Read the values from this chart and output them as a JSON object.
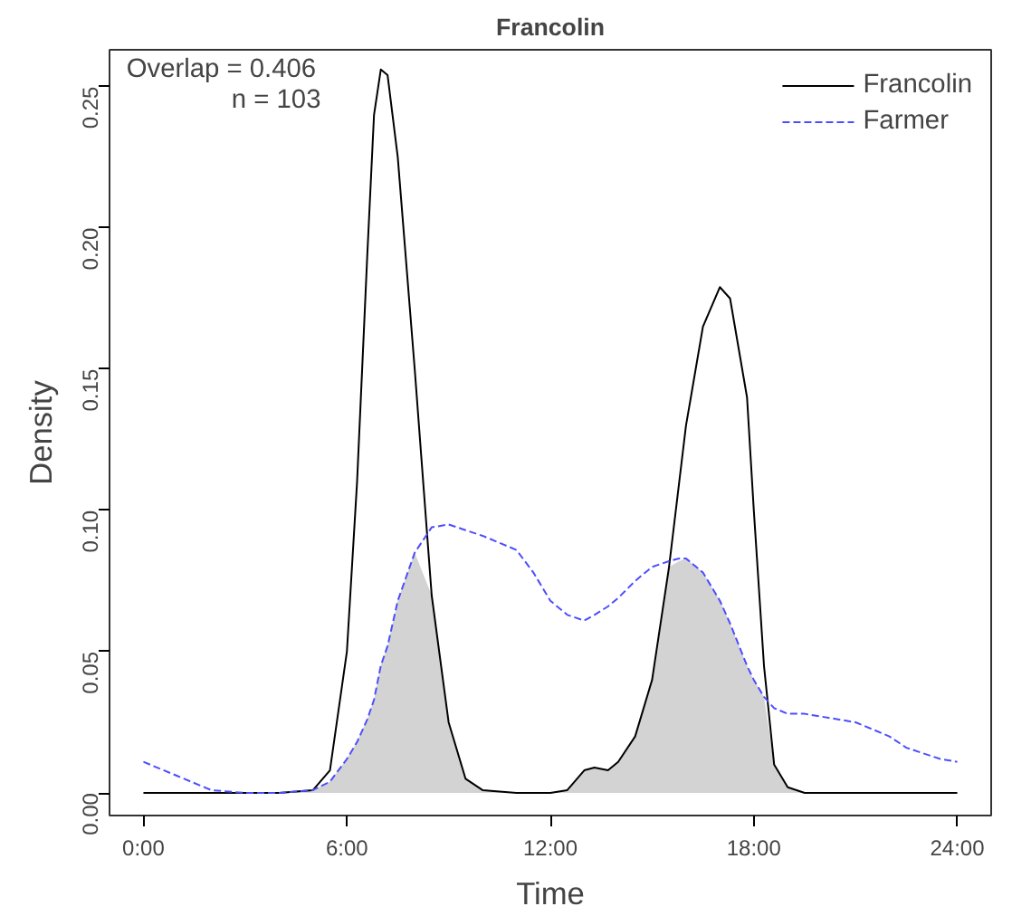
{
  "chart_data": {
    "type": "line",
    "title": "Francolin",
    "xlabel": "Time",
    "ylabel": "Density",
    "x": [
      0,
      1,
      2,
      3,
      4,
      5,
      5.5,
      6,
      6.3,
      6.6,
      6.8,
      7,
      7.2,
      7.5,
      8,
      8.5,
      9,
      9.5,
      10,
      11,
      11.5,
      12,
      12.5,
      13,
      13.3,
      13.7,
      14,
      14.5,
      15,
      15.5,
      15.8,
      16,
      16.5,
      17,
      17.3,
      17.8,
      18,
      18.3,
      18.6,
      19,
      19.5,
      20,
      21,
      22,
      22.5,
      23.5,
      24
    ],
    "series": [
      {
        "type": "area",
        "color": "#d3d3d3",
        "values": [
          0,
          0,
          0,
          0,
          0,
          0.001,
          0.004,
          0.012,
          0.018,
          0.026,
          0.033,
          0.045,
          0.052,
          0.068,
          0.085,
          0.07,
          0.025,
          0.005,
          0.001,
          0,
          0,
          0,
          0.001,
          0.008,
          0.009,
          0.008,
          0.011,
          0.02,
          0.04,
          0.08,
          0.082,
          0.083,
          0.078,
          0.068,
          0.06,
          0.045,
          0.04,
          0.034,
          0.01,
          0.002,
          0,
          0,
          0,
          0,
          0,
          0,
          0
        ]
      },
      {
        "name": "Francolin",
        "color": "#000000",
        "line_style": "solid",
        "values": [
          0,
          0,
          0,
          0,
          0,
          0.001,
          0.008,
          0.05,
          0.11,
          0.19,
          0.24,
          0.256,
          0.254,
          0.225,
          0.15,
          0.07,
          0.025,
          0.005,
          0.001,
          0,
          0,
          0,
          0.001,
          0.008,
          0.009,
          0.008,
          0.011,
          0.02,
          0.04,
          0.08,
          0.11,
          0.13,
          0.165,
          0.179,
          0.175,
          0.14,
          0.1,
          0.045,
          0.01,
          0.002,
          0,
          0,
          0,
          0,
          0,
          0,
          0
        ]
      },
      {
        "name": "Farmer",
        "color": "#4d4dff",
        "line_style": "dashed",
        "values": [
          0.011,
          0.006,
          0.001,
          0,
          0,
          0.001,
          0.004,
          0.012,
          0.018,
          0.026,
          0.033,
          0.045,
          0.052,
          0.068,
          0.085,
          0.094,
          0.095,
          0.093,
          0.091,
          0.086,
          0.078,
          0.068,
          0.063,
          0.061,
          0.063,
          0.066,
          0.069,
          0.075,
          0.08,
          0.082,
          0.083,
          0.083,
          0.078,
          0.068,
          0.06,
          0.045,
          0.04,
          0.034,
          0.03,
          0.028,
          0.028,
          0.027,
          0.025,
          0.02,
          0.016,
          0.012,
          0.011
        ]
      }
    ],
    "xlim": [
      -1,
      25
    ],
    "ylim": [
      -0.008,
      0.263
    ],
    "xticks": [
      {
        "value": 0,
        "label": "0:00"
      },
      {
        "value": 6,
        "label": "6:00"
      },
      {
        "value": 12,
        "label": "12:00"
      },
      {
        "value": 18,
        "label": "18:00"
      },
      {
        "value": 24,
        "label": "24:00"
      }
    ],
    "yticks": [
      {
        "value": 0,
        "label": "0.00"
      },
      {
        "value": 0.05,
        "label": "0.05"
      },
      {
        "value": 0.1,
        "label": "0.10"
      },
      {
        "value": 0.15,
        "label": "0.15"
      },
      {
        "value": 0.2,
        "label": "0.20"
      },
      {
        "value": 0.25,
        "label": "0.25"
      }
    ],
    "annotations": [
      "Overlap = 0.406",
      "n = 103"
    ],
    "legend": "top right",
    "grid": false
  }
}
